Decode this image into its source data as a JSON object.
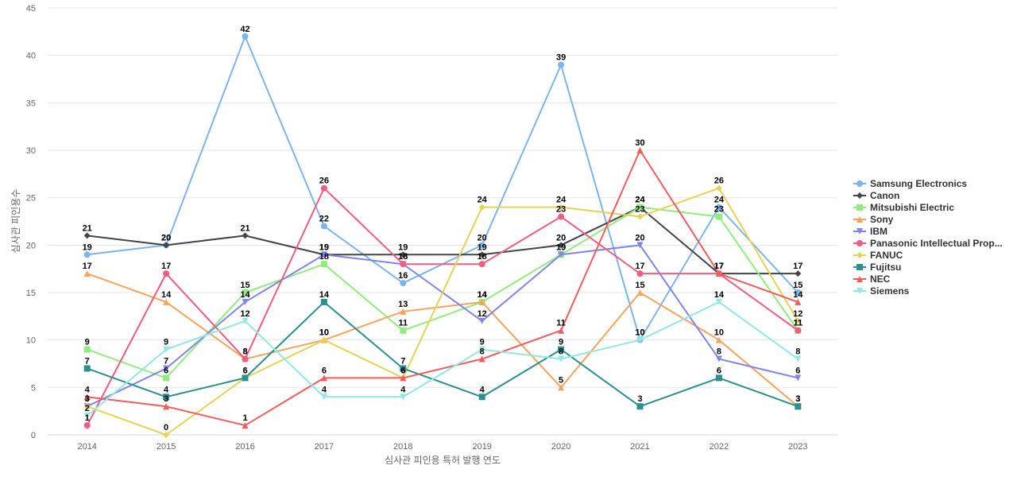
{
  "chart_data": {
    "type": "line",
    "title": "",
    "xlabel": "심사관 피인용 특허 발행 연도",
    "ylabel": "심사관 피인용수",
    "ylim": [
      0,
      45
    ],
    "yticks": [
      0,
      5,
      10,
      15,
      20,
      25,
      30,
      35,
      40,
      45
    ],
    "categories": [
      "2014",
      "2015",
      "2016",
      "2017",
      "2018",
      "2019",
      "2020",
      "2021",
      "2022",
      "2023"
    ],
    "grid": "horizontal",
    "legend_position": "right",
    "series": [
      {
        "name": "Samsung Electronics",
        "color": "#7cb5ec",
        "marker": "circle",
        "values": [
          19,
          20,
          42,
          22,
          16,
          20,
          39,
          10,
          24,
          15
        ]
      },
      {
        "name": "Canon",
        "color": "#434348",
        "marker": "diamond",
        "values": [
          21,
          20,
          21,
          19,
          19,
          19,
          20,
          24,
          17,
          17
        ]
      },
      {
        "name": "Mitsubishi Electric",
        "color": "#90ed7d",
        "marker": "square",
        "values": [
          9,
          6,
          15,
          18,
          11,
          14,
          19,
          24,
          23,
          11
        ]
      },
      {
        "name": "Sony",
        "color": "#f7a35c",
        "marker": "triangle",
        "values": [
          17,
          14,
          8,
          10,
          13,
          14,
          5,
          15,
          10,
          3
        ]
      },
      {
        "name": "IBM",
        "color": "#8085e9",
        "marker": "triangle-down",
        "values": [
          3,
          7,
          14,
          19,
          18,
          12,
          19,
          20,
          8,
          6
        ]
      },
      {
        "name": "Panasonic Intellectual Prop...",
        "color": "#f15c80",
        "marker": "circle",
        "values": [
          1,
          17,
          8,
          26,
          18,
          18,
          23,
          17,
          17,
          11
        ]
      },
      {
        "name": "FANUC",
        "color": "#e4d354",
        "marker": "diamond",
        "values": [
          3,
          0,
          6,
          10,
          6,
          24,
          24,
          23,
          26,
          12
        ]
      },
      {
        "name": "Fujitsu",
        "color": "#2b908f",
        "marker": "square",
        "values": [
          7,
          4,
          6,
          14,
          7,
          4,
          9,
          3,
          6,
          3
        ]
      },
      {
        "name": "NEC",
        "color": "#f45b5b",
        "marker": "triangle",
        "values": [
          4,
          3,
          1,
          6,
          6,
          8,
          11,
          30,
          17,
          14
        ]
      },
      {
        "name": "Siemens",
        "color": "#91e8e1",
        "marker": "triangle-down",
        "values": [
          2,
          9,
          12,
          4,
          4,
          9,
          8,
          10,
          14,
          8
        ]
      }
    ]
  }
}
